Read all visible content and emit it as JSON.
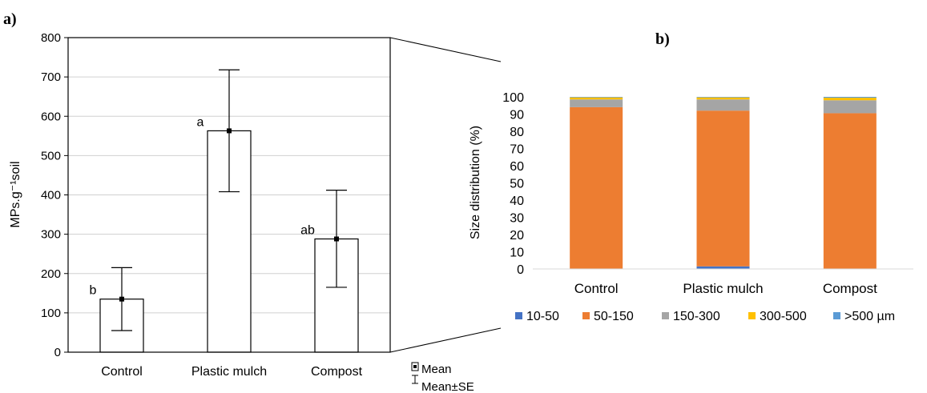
{
  "chart_data": [
    {
      "panel": "a)",
      "type": "bar",
      "ylabel": "MPs.g⁻¹soil",
      "categories": [
        "Control",
        "Plastic mulch",
        "Compost"
      ],
      "values": [
        135,
        563,
        288
      ],
      "se_low": [
        55,
        408,
        165
      ],
      "se_high": [
        215,
        718,
        412
      ],
      "significance": [
        "b",
        "a",
        "ab"
      ],
      "ylim": [
        0,
        800
      ],
      "yticks": [
        "0",
        "100",
        "200",
        "300",
        "400",
        "500",
        "600",
        "700",
        "800"
      ],
      "grid": true,
      "legend": [
        {
          "symbol": "mean-square-icon",
          "label": "Mean"
        },
        {
          "symbol": "error-bar-icon",
          "label": "Mean±SE"
        }
      ]
    },
    {
      "panel": "b)",
      "type": "bar",
      "stacked": true,
      "ylabel": "Size distribution (%)",
      "categories": [
        "Control",
        "Plastic mulch",
        "Compost"
      ],
      "series": [
        {
          "name": "10-50",
          "color": "#4472C4",
          "values": [
            0,
            1.5,
            0
          ]
        },
        {
          "name": "50-150",
          "color": "#ED7D31",
          "values": [
            94,
            90.5,
            90.5
          ]
        },
        {
          "name": "150-300",
          "color": "#A5A5A5",
          "values": [
            4.5,
            6.5,
            7.5
          ]
        },
        {
          "name": "300-500",
          "color": "#FFC000",
          "values": [
            1.2,
            1.2,
            1.5
          ]
        },
        {
          "name": ">500 µm",
          "color": "#5B9BD5",
          "values": [
            0.3,
            0.3,
            0.5
          ]
        }
      ],
      "ylim": [
        0,
        100
      ],
      "yticks": [
        "0",
        "10",
        "20",
        "30",
        "40",
        "50",
        "60",
        "70",
        "80",
        "90",
        "100"
      ],
      "legend_position": "bottom"
    }
  ]
}
